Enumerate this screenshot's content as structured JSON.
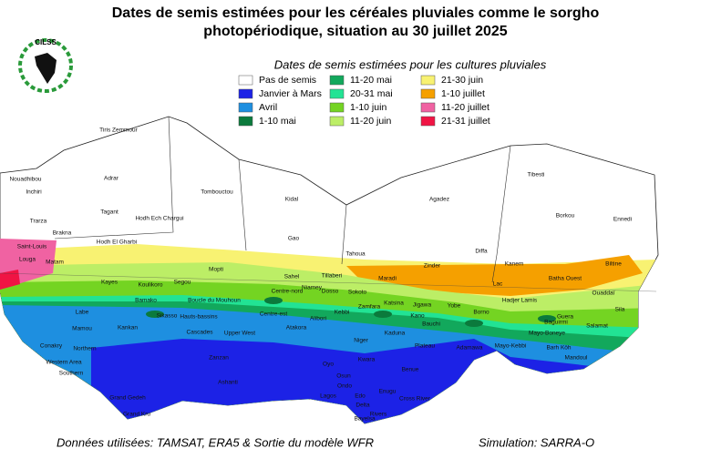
{
  "header": {
    "title_line1": "Dates de semis estimées pour les céréales pluviales comme le sorgho",
    "title_line2": "photopériodique, situation au 30 juillet 2025",
    "logo_text": "CILSS"
  },
  "legend": {
    "title": "Dates de semis estimées pour les cultures pluviales",
    "items": [
      {
        "label": "Pas de semis",
        "color": "#ffffff"
      },
      {
        "label": "Janvier à Mars",
        "color": "#1c22e6"
      },
      {
        "label": "Avril",
        "color": "#1e8fe0"
      },
      {
        "label": "1-10 mai",
        "color": "#0b7a3c"
      },
      {
        "label": "11-20 mai",
        "color": "#12a85c"
      },
      {
        "label": "20-31 mai",
        "color": "#22e394"
      },
      {
        "label": "1-10 juin",
        "color": "#74d422"
      },
      {
        "label": "11-20 juin",
        "color": "#bcee66"
      },
      {
        "label": "21-30 juin",
        "color": "#f8f272"
      },
      {
        "label": "1-10 juillet",
        "color": "#f5a000"
      },
      {
        "label": "11-20 juillet",
        "color": "#f062a2"
      },
      {
        "label": "21-31 juillet",
        "color": "#f01444"
      }
    ]
  },
  "map_labels": [
    "Tiris Zemmour",
    "Adrar",
    "Nouadhibou",
    "Inchiri",
    "Tagant",
    "Hodh Ech Chargui",
    "Trarza",
    "Brakna",
    "Hodh El Gharbi",
    "Tombouctou",
    "Kidal",
    "Gao",
    "Agadez",
    "Tahoua",
    "Zinder",
    "Diffa",
    "Tibesti",
    "Borkou",
    "Ennedi",
    "Kanem",
    "Batha Ouest",
    "Biltine",
    "Saint-Louis",
    "Louga",
    "Matam",
    "Mopti",
    "Sahel",
    "Tillaberi",
    "Maradi",
    "Lac",
    "Hadjer Lamis",
    "Ouaddaï",
    "Kayes",
    "Koulikoro",
    "Segou",
    "Centre-nord",
    "Niamey",
    "Dosso",
    "Sokoto",
    "Katsina",
    "Yobe",
    "Borno",
    "Guera",
    "Salamat",
    "Sila",
    "Bamako",
    "Boucle du Mouhoun",
    "Kebbi",
    "Zamfara",
    "Jigawa",
    "Kano",
    "Bauchi",
    "Kaduna",
    "Baguirmi",
    "Mayo-Boneye",
    "Labe",
    "Sikasso",
    "Hauts-bassins",
    "Centre-est",
    "Alibori",
    "Niger",
    "Adamawa",
    "Mayo-Kebbi",
    "Mamou",
    "Kankan",
    "Cascades",
    "Upper West",
    "Atakora",
    "Plateau",
    "Barh Kôh",
    "Mandoul",
    "Northern",
    "Conakry",
    "Western Area",
    "Zanzan",
    "Oyo",
    "Kwara",
    "Southern",
    "Benue",
    "Ashanti",
    "Osun",
    "Ondo",
    "Edo",
    "Enugu",
    "Grand Gedeh",
    "Grand Kru",
    "Lagos",
    "Delta",
    "Cross River",
    "Rivers",
    "Bayelsa"
  ],
  "footer": {
    "sources": "Données utilisées: TAMSAT, ERA5 & Sortie du modèle WFR",
    "simulation": "Simulation: SARRA-O"
  }
}
